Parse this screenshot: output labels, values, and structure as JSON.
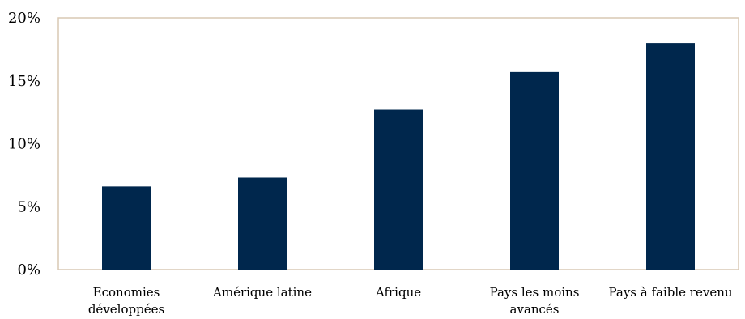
{
  "chart_data": {
    "type": "bar",
    "categories": [
      [
        "Economies",
        "développées"
      ],
      [
        "Amérique latine"
      ],
      [
        "Afrique"
      ],
      [
        "Pays les moins",
        "avancés"
      ],
      [
        "Pays à faible revenu"
      ]
    ],
    "values": [
      6.6,
      7.3,
      12.7,
      15.7,
      18.0
    ],
    "y_ticks": [
      "0%",
      "5%",
      "10%",
      "15%",
      "20%"
    ],
    "ylim": [
      0,
      20
    ],
    "bar_color": "#00274d",
    "frame_color": "#d9c8b4",
    "grid": false,
    "legend": "none"
  }
}
